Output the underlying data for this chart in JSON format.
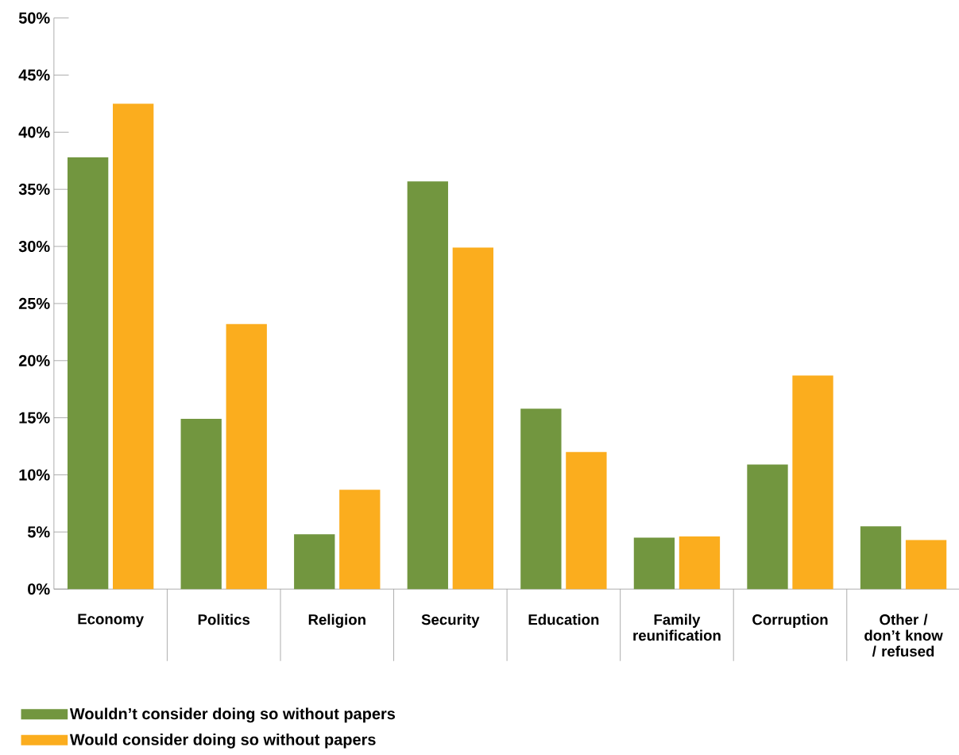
{
  "chart_data": {
    "type": "bar",
    "categories": [
      "Economy",
      "Politics",
      "Religion",
      "Security",
      "Education",
      "Family reunification",
      "Corruption",
      "Other / don’t know / refused"
    ],
    "series": [
      {
        "name": "Wouldn’t consider doing so without papers",
        "color": "#72963f",
        "values": [
          37.8,
          14.9,
          4.8,
          35.7,
          15.8,
          4.5,
          10.9,
          5.5
        ]
      },
      {
        "name": "Would consider doing so without papers",
        "color": "#fbad1e",
        "values": [
          42.5,
          23.2,
          8.7,
          29.9,
          12.0,
          4.6,
          18.7,
          4.3
        ]
      }
    ],
    "ylim": [
      0,
      50
    ],
    "yticks": [
      {
        "value": 0,
        "label": "0%"
      },
      {
        "value": 5,
        "label": "5%"
      },
      {
        "value": 10,
        "label": "10%"
      },
      {
        "value": 15,
        "label": "15%"
      },
      {
        "value": 20,
        "label": "20%"
      },
      {
        "value": 25,
        "label": "25%"
      },
      {
        "value": 30,
        "label": "30%"
      },
      {
        "value": 35,
        "label": "35%"
      },
      {
        "value": 40,
        "label": "40%"
      },
      {
        "value": 45,
        "label": "45%"
      },
      {
        "value": 50,
        "label": "50%"
      }
    ],
    "grid": false,
    "legend": "bottom left"
  }
}
